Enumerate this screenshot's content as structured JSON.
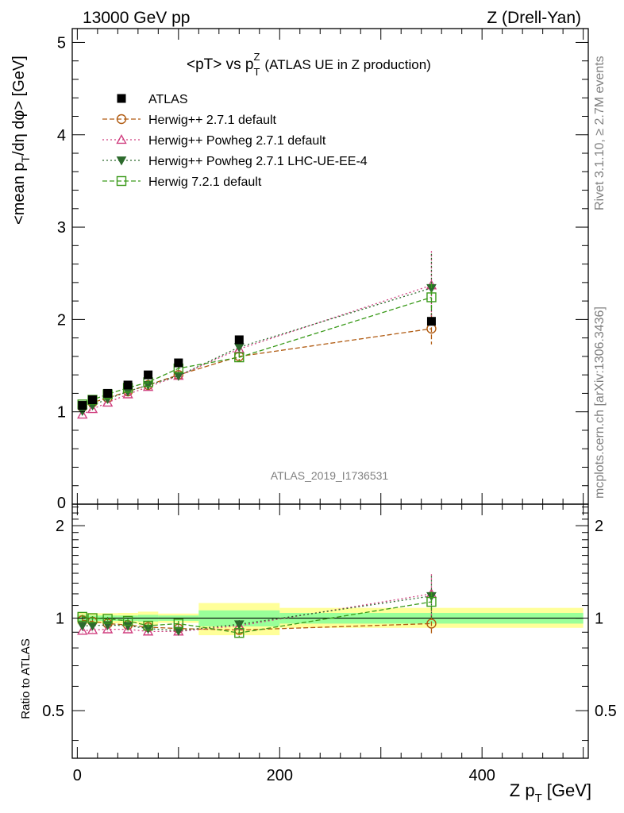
{
  "header": {
    "left": "13000 GeV pp",
    "right": "Z (Drell-Yan)"
  },
  "side_labels": {
    "rivet": "Rivet 3.1.10, ≥ 2.7M events",
    "mcplots": "mcplots.cern.ch [arXiv:1306.3436]"
  },
  "watermark": "ATLAS_2019_I1736531",
  "chart_data": [
    {
      "type": "line",
      "title": "<pT> vs pTZ (ATLAS UE in Z production)",
      "title_parts": {
        "main": "<pT> vs p",
        "sub": "T",
        "sup": "Z",
        "rest": "(ATLAS UE in Z production)"
      },
      "ylabel": "<mean pT/dη dφ> [GeV]",
      "ylabel_parts": {
        "a": "<mean p",
        "sub": "T",
        "b": "/dη dφ> [GeV]"
      },
      "xlim": [
        -5,
        505
      ],
      "ylim": [
        0,
        5.15
      ],
      "yticks": [
        "1",
        "2",
        "3",
        "4",
        "5"
      ],
      "y0_label": "0",
      "legend_position": "top-left",
      "data_series": {
        "name": "ATLAS",
        "x": [
          5,
          15,
          30,
          50,
          70,
          100,
          160,
          350
        ],
        "y": [
          1.07,
          1.13,
          1.2,
          1.29,
          1.4,
          1.53,
          1.78,
          1.98
        ]
      },
      "series": [
        {
          "name": "Herwig++ 2.7.1 default",
          "color": "#b05a10",
          "marker": "circle",
          "dash": "6,3",
          "x": [
            5,
            15,
            30,
            50,
            70,
            100,
            160,
            350
          ],
          "y": [
            1.05,
            1.1,
            1.15,
            1.22,
            1.29,
            1.4,
            1.6,
            1.9
          ],
          "err": [
            0.02,
            0.02,
            0.02,
            0.02,
            0.03,
            0.03,
            0.05,
            0.17
          ]
        },
        {
          "name": "Herwig++ Powheg 2.7.1 default",
          "color": "#d04080",
          "marker": "triangle-up",
          "dash": "2,3",
          "x": [
            5,
            15,
            30,
            50,
            70,
            100,
            160,
            350
          ],
          "y": [
            0.97,
            1.03,
            1.1,
            1.19,
            1.27,
            1.39,
            1.68,
            2.37
          ],
          "err": [
            0.02,
            0.02,
            0.02,
            0.02,
            0.03,
            0.03,
            0.06,
            0.37
          ]
        },
        {
          "name": "Herwig++ Powheg 2.7.1 LHC-UE-EE-4",
          "color": "#2d6a2d",
          "marker": "triangle-down",
          "dash": "2,3",
          "x": [
            5,
            15,
            30,
            50,
            70,
            100,
            160,
            350
          ],
          "y": [
            1.01,
            1.07,
            1.14,
            1.22,
            1.29,
            1.39,
            1.7,
            2.34
          ],
          "err": [
            0.02,
            0.02,
            0.02,
            0.02,
            0.03,
            0.03,
            0.06,
            0.37
          ]
        },
        {
          "name": "Herwig 7.2.1 default",
          "color": "#3a9a1a",
          "marker": "square",
          "dash": "6,3",
          "x": [
            5,
            15,
            30,
            50,
            70,
            100,
            160,
            350
          ],
          "y": [
            1.08,
            1.13,
            1.19,
            1.26,
            1.32,
            1.47,
            1.59,
            2.24
          ],
          "err": [
            0.02,
            0.02,
            0.02,
            0.02,
            0.03,
            0.03,
            0.05,
            0.15
          ]
        }
      ]
    },
    {
      "type": "line",
      "title": "",
      "ylabel": "Ratio to ATLAS",
      "xlabel": "Z pT [GeV]",
      "xlabel_parts": {
        "a": "Z p",
        "sub": "T",
        "b": "[GeV]"
      },
      "xlim": [
        -5,
        505
      ],
      "ylim": [
        0.35,
        2.35
      ],
      "yticks": [
        "0.5",
        "1",
        "2"
      ],
      "xticks": [
        "0",
        "200",
        "400"
      ],
      "bands": [
        {
          "x0": 0,
          "x1": 10,
          "lo1": 0.975,
          "hi1": 1.025,
          "lo2": 0.955,
          "hi2": 1.045
        },
        {
          "x0": 10,
          "x1": 20,
          "lo1": 0.98,
          "hi1": 1.02,
          "lo2": 0.96,
          "hi2": 1.04
        },
        {
          "x0": 20,
          "x1": 40,
          "lo1": 0.98,
          "hi1": 1.02,
          "lo2": 0.962,
          "hi2": 1.038
        },
        {
          "x0": 40,
          "x1": 60,
          "lo1": 0.98,
          "hi1": 1.02,
          "lo2": 0.96,
          "hi2": 1.04
        },
        {
          "x0": 60,
          "x1": 80,
          "lo1": 0.975,
          "hi1": 1.025,
          "lo2": 0.95,
          "hi2": 1.05
        },
        {
          "x0": 80,
          "x1": 120,
          "lo1": 0.98,
          "hi1": 1.02,
          "lo2": 0.965,
          "hi2": 1.035
        },
        {
          "x0": 120,
          "x1": 200,
          "lo1": 0.94,
          "hi1": 1.06,
          "lo2": 0.88,
          "hi2": 1.12
        },
        {
          "x0": 200,
          "x1": 500,
          "lo1": 0.96,
          "hi1": 1.04,
          "lo2": 0.93,
          "hi2": 1.08
        }
      ],
      "series": [
        {
          "name": "Herwig++ 2.7.1 default",
          "color": "#b05a10",
          "marker": "circle",
          "dash": "6,3",
          "x": [
            5,
            15,
            30,
            50,
            70,
            100,
            160,
            350
          ],
          "y": [
            0.985,
            0.975,
            0.96,
            0.95,
            0.935,
            0.925,
            0.915,
            0.96
          ],
          "err": [
            0.015,
            0.015,
            0.015,
            0.015,
            0.02,
            0.02,
            0.03,
            0.07
          ]
        },
        {
          "name": "Herwig++ Powheg 2.7.1 default",
          "color": "#d04080",
          "marker": "triangle-up",
          "dash": "2,3",
          "x": [
            5,
            15,
            30,
            50,
            70,
            100,
            160,
            350
          ],
          "y": [
            0.91,
            0.915,
            0.92,
            0.92,
            0.905,
            0.905,
            0.945,
            1.2
          ],
          "err": [
            0.015,
            0.015,
            0.015,
            0.015,
            0.02,
            0.02,
            0.03,
            0.19
          ]
        },
        {
          "name": "Herwig++ Powheg 2.7.1 LHC-UE-EE-4",
          "color": "#2d6a2d",
          "marker": "triangle-down",
          "dash": "2,3",
          "x": [
            5,
            15,
            30,
            50,
            70,
            100,
            160,
            350
          ],
          "y": [
            0.945,
            0.945,
            0.95,
            0.945,
            0.925,
            0.91,
            0.955,
            1.18
          ],
          "err": [
            0.015,
            0.015,
            0.015,
            0.015,
            0.02,
            0.02,
            0.03,
            0.19
          ]
        },
        {
          "name": "Herwig 7.2.1 default",
          "color": "#3a9a1a",
          "marker": "square",
          "dash": "6,3",
          "x": [
            5,
            15,
            30,
            50,
            70,
            100,
            160,
            350
          ],
          "y": [
            1.01,
            1.0,
            0.995,
            0.98,
            0.945,
            0.96,
            0.895,
            1.13
          ],
          "err": [
            0.015,
            0.015,
            0.015,
            0.015,
            0.02,
            0.02,
            0.03,
            0.09
          ]
        }
      ]
    }
  ]
}
